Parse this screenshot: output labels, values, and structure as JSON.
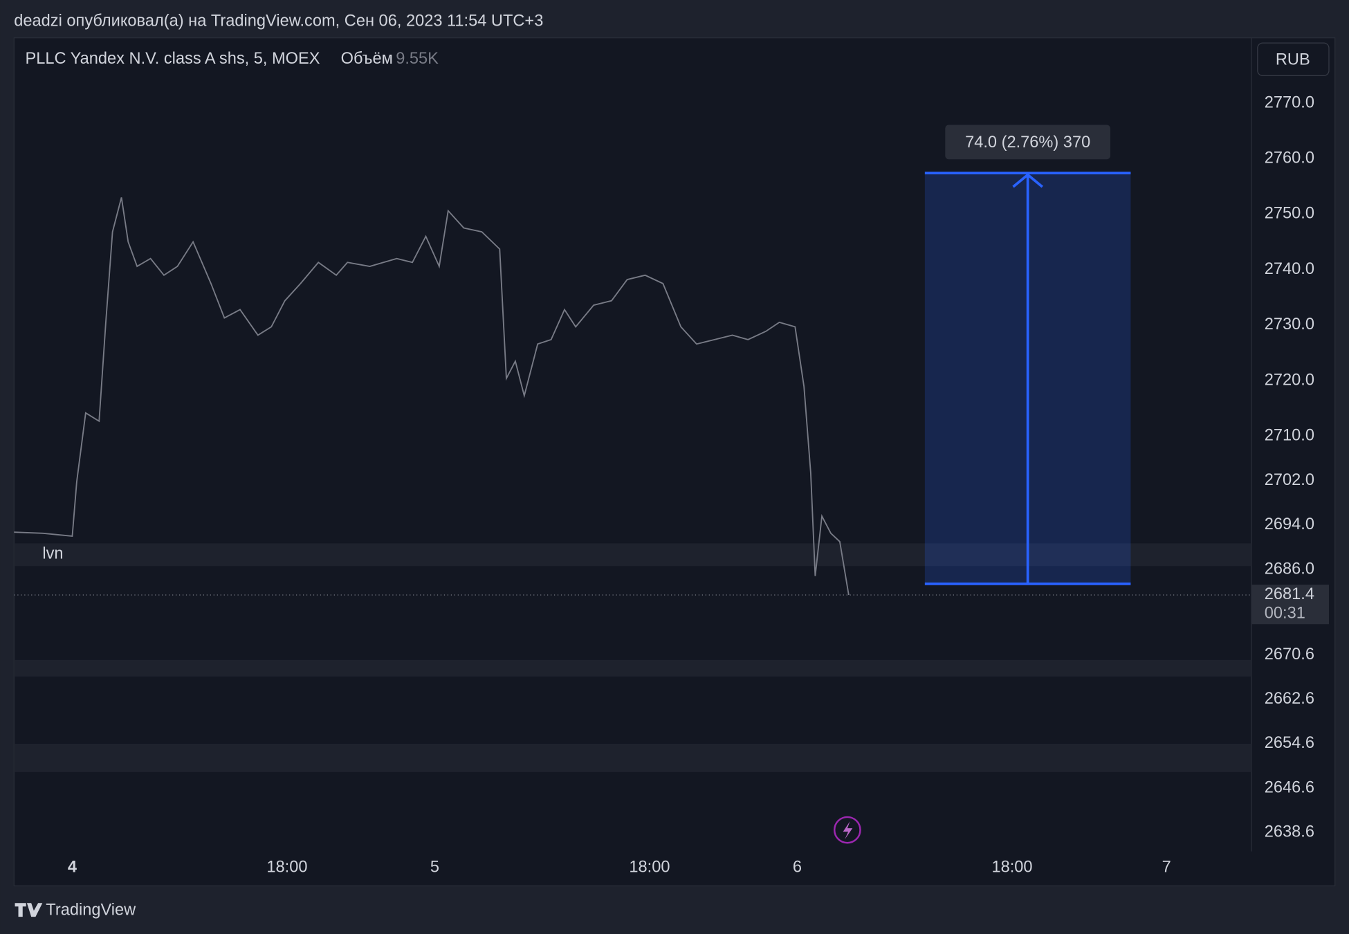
{
  "header": "deadzi опубликовал(а) на TradingView.com, Сен 06, 2023 11:54 UTC+3",
  "footer": "TradingView",
  "chart_data": {
    "type": "line",
    "title": "PLLC Yandex N.V. class A shs, 5, MOEX",
    "volume_label": "Объём",
    "volume_value": "9.55K",
    "currency": "RUB",
    "x": [
      -26,
      -13,
      0,
      2,
      6,
      12,
      15,
      18,
      22,
      25,
      29,
      35,
      41,
      47,
      54,
      62,
      68,
      75,
      83,
      89,
      95,
      102,
      110,
      118,
      123,
      133,
      145,
      152,
      158,
      164,
      168,
      175,
      183,
      191,
      194,
      198,
      202,
      208,
      214,
      220,
      225,
      233,
      241,
      248,
      256,
      264,
      272,
      279,
      287,
      295,
      302,
      310,
      316,
      323,
      327,
      330,
      332,
      335,
      339,
      343,
      347
    ],
    "series": [
      {
        "color": "#787b86",
        "values": [
          2692.7,
          2692.5,
          2692,
          2701.8,
          2714.2,
          2712.7,
          2730.5,
          2746.8,
          2753,
          2745,
          2740.6,
          2742,
          2739,
          2740.6,
          2745,
          2737.5,
          2731.3,
          2732.8,
          2728.2,
          2729.7,
          2734.4,
          2737.5,
          2741.3,
          2739,
          2741.3,
          2740.6,
          2742,
          2741.3,
          2746,
          2740.6,
          2750.6,
          2747.5,
          2746.8,
          2743.7,
          2720.4,
          2723.5,
          2717.3,
          2726.6,
          2727.4,
          2732.8,
          2729.7,
          2733.6,
          2734.4,
          2738.2,
          2739,
          2737.5,
          2729.7,
          2726.6,
          2727.4,
          2728.2,
          2727.4,
          2728.9,
          2730.5,
          2729.7,
          2718.9,
          2703.4,
          2684.8,
          2695.6,
          2692.5,
          2691,
          2681.4
        ]
      }
    ],
    "xlim": [
      -26,
      527
    ],
    "xticks": [
      {
        "value": 0,
        "label": "4"
      },
      {
        "value": 96,
        "label": "18:00"
      },
      {
        "value": 162,
        "label": "5"
      },
      {
        "value": 258,
        "label": "18:00"
      },
      {
        "value": 324,
        "label": "6"
      },
      {
        "value": 420,
        "label": "18:00"
      },
      {
        "value": 489,
        "label": "7"
      }
    ],
    "ylim": [
      2635.2,
      2781.6
    ],
    "yticks": [
      {
        "value": 2770,
        "label": "2770.0"
      },
      {
        "value": 2760,
        "label": "2760.0"
      },
      {
        "value": 2750,
        "label": "2750.0"
      },
      {
        "value": 2740,
        "label": "2740.0"
      },
      {
        "value": 2730,
        "label": "2730.0"
      },
      {
        "value": 2720,
        "label": "2720.0"
      },
      {
        "value": 2710,
        "label": "2710.0"
      },
      {
        "value": 2702,
        "label": "2702.0"
      },
      {
        "value": 2694,
        "label": "2694.0"
      },
      {
        "value": 2686,
        "label": "2686.0"
      },
      2670.6,
      2662.6,
      2654.6,
      2646.6,
      2638.6
    ],
    "last_price": {
      "value": 2681.4,
      "countdown": "00:31"
    },
    "zones": [
      {
        "range": [
          2686.6,
          2690.7
        ],
        "label": "lvn"
      },
      {
        "range": [
          2666.7,
          2669.7
        ]
      },
      {
        "range": [
          2649.5,
          2654.6
        ]
      }
    ],
    "measure": {
      "x": [
        381,
        473
      ],
      "y": [
        2683.4,
        2757.4
      ],
      "label": "74.0 (2.76%) 370",
      "color": "#2962ff"
    }
  }
}
